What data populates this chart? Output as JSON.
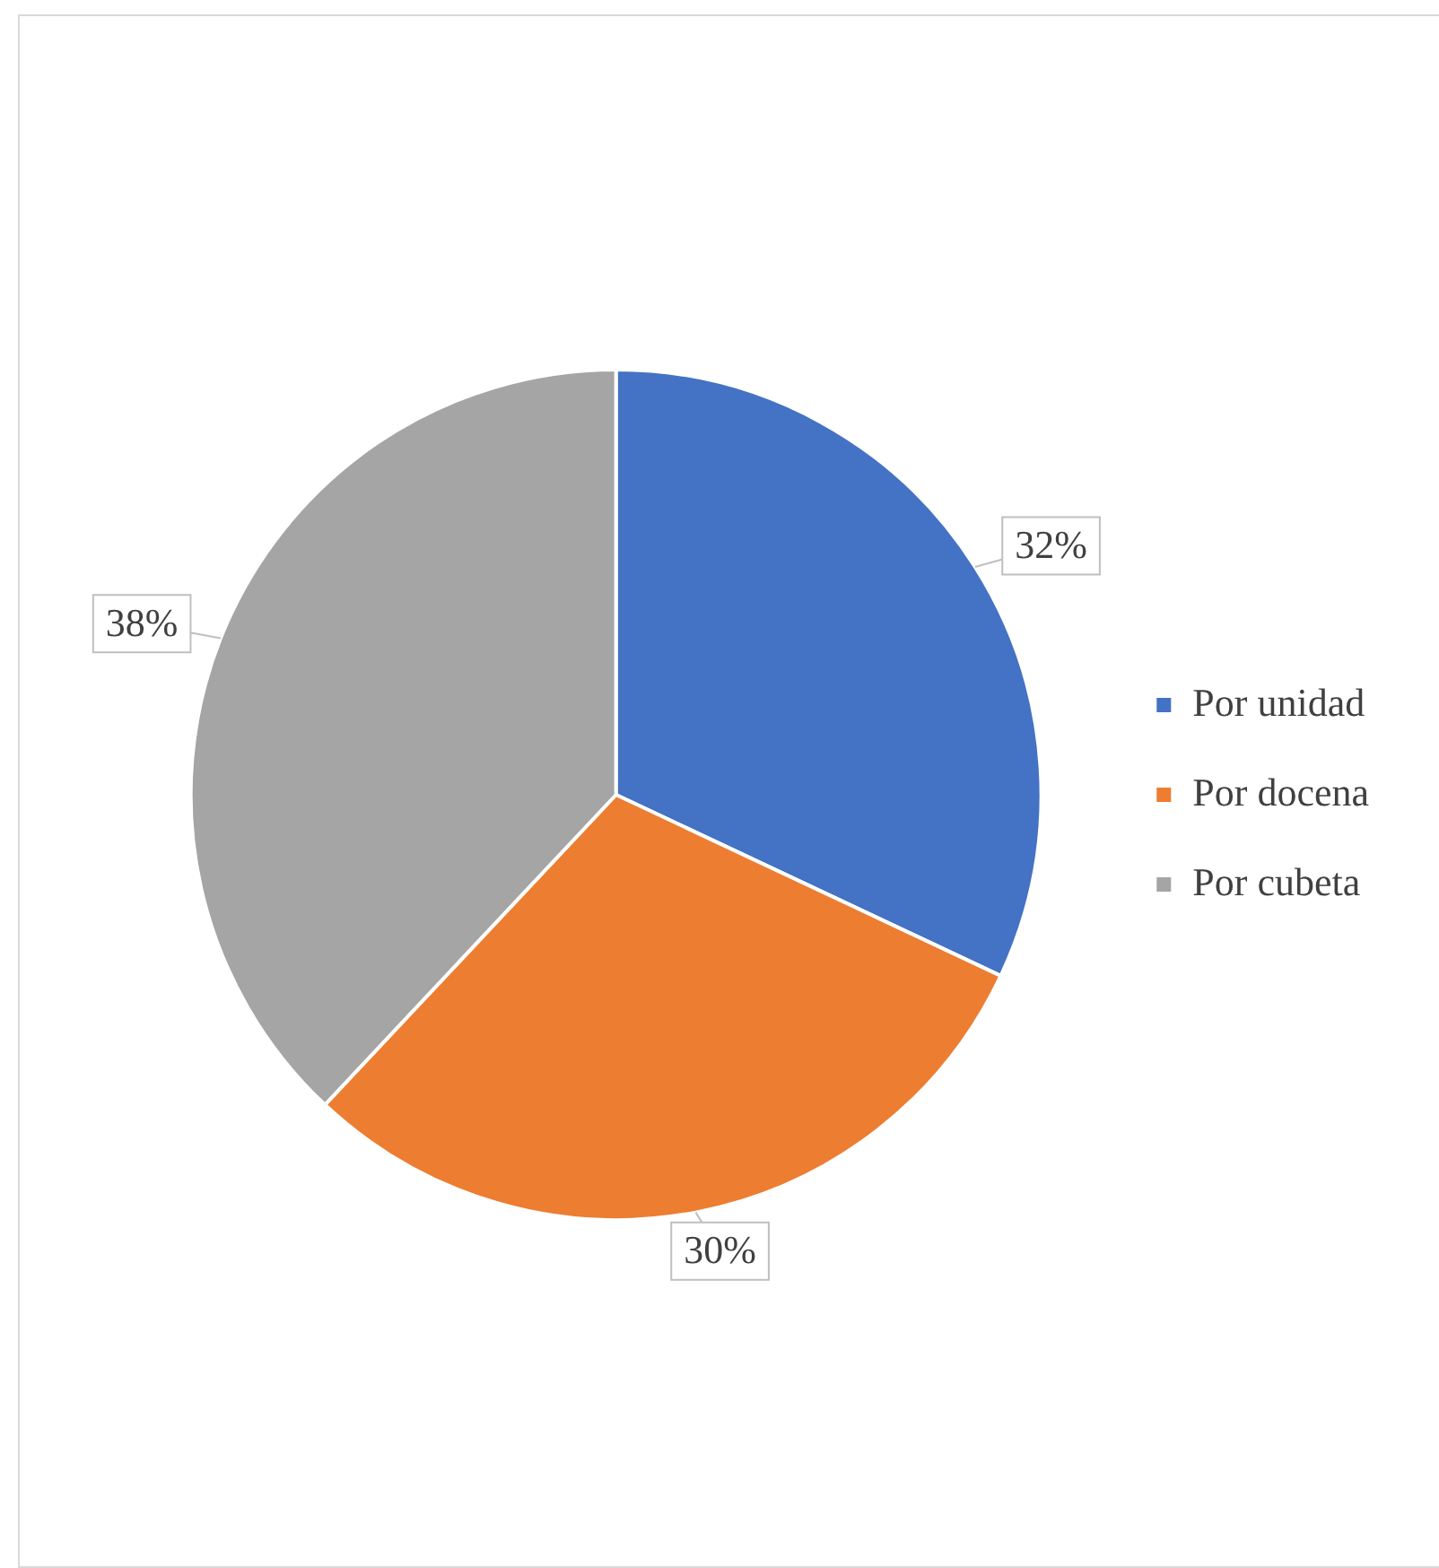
{
  "chart_data": {
    "type": "pie",
    "categories": [
      "Por unidad",
      "Por docena",
      "Por cubeta"
    ],
    "values": [
      32,
      30,
      38
    ],
    "value_labels": [
      "32%",
      "30%",
      "38%"
    ],
    "colors": [
      "#4472c4",
      "#ed7d31",
      "#a5a5a5"
    ],
    "legend": "right"
  }
}
